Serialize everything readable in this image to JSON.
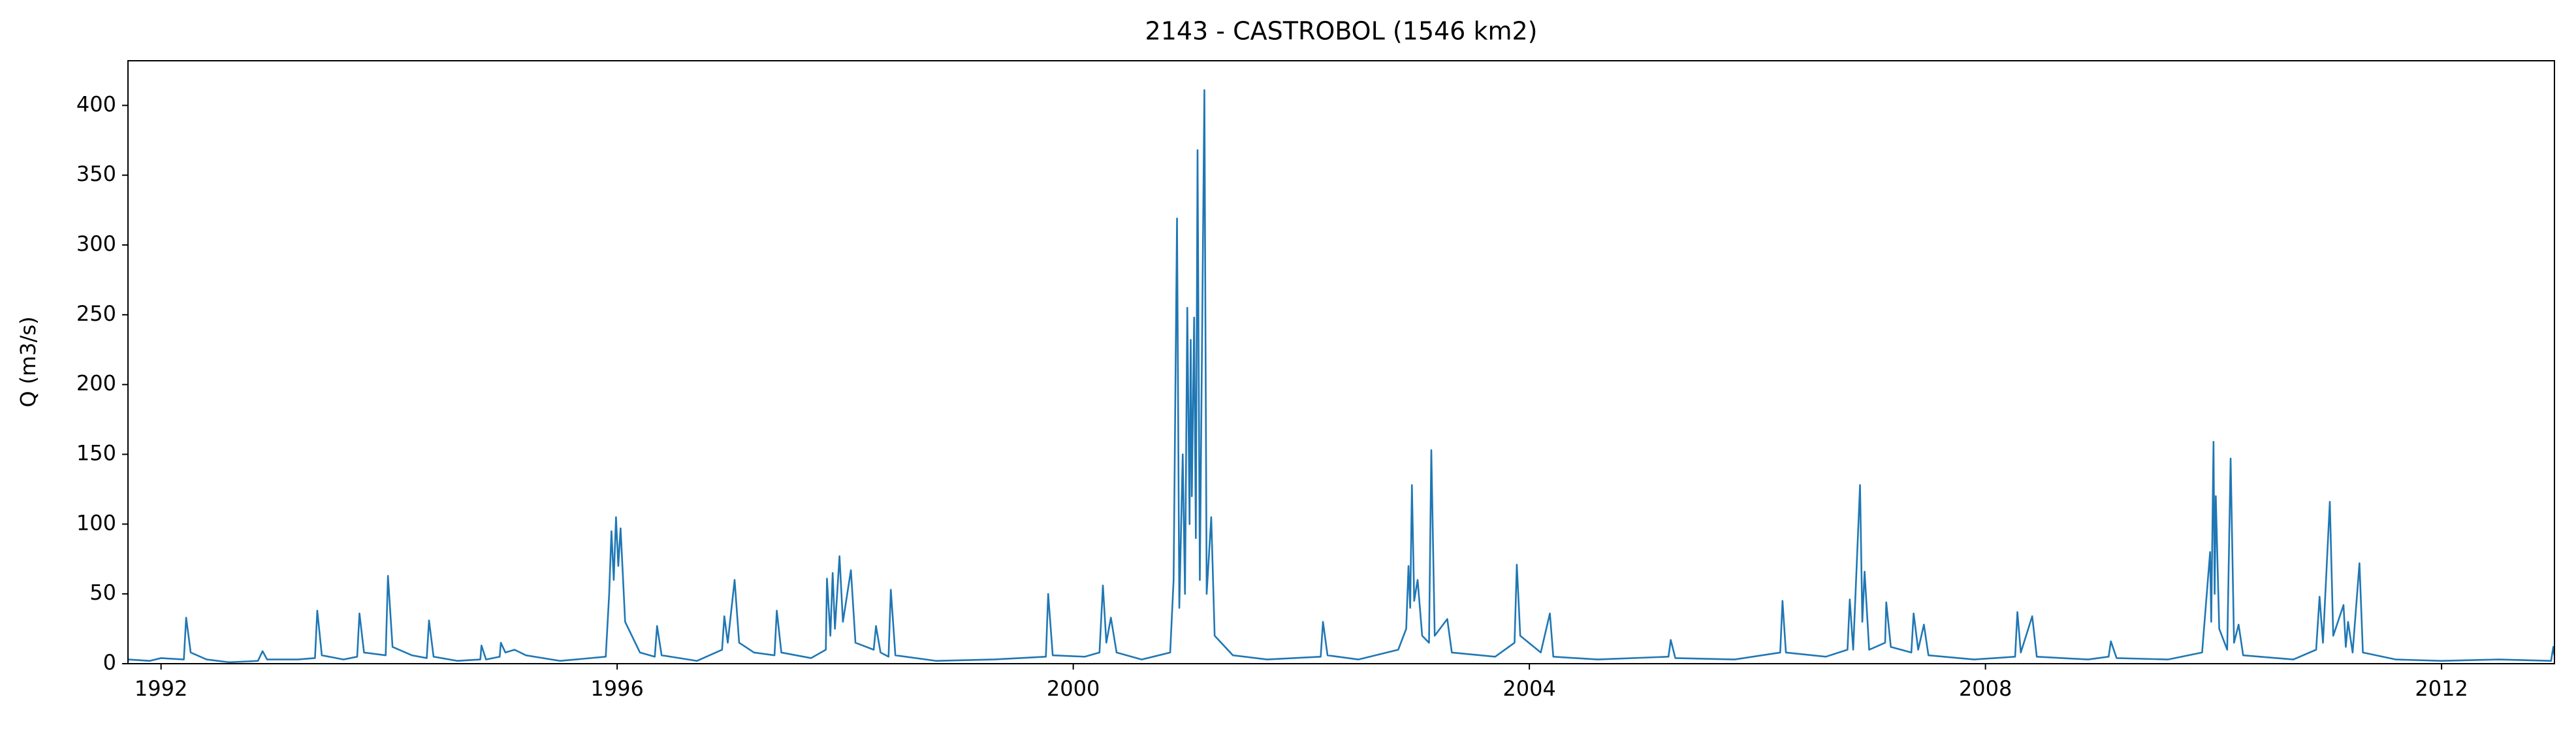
{
  "chart_data": {
    "type": "line",
    "title": "2143 - CASTROBOL (1546 km2)",
    "y_label": "Q (m3/s)",
    "color": "#1f77b4",
    "x": [
      1991.71,
      1991.9,
      1992.0,
      1992.2,
      1992.22,
      1992.26,
      1992.4,
      1992.6,
      1992.85,
      1992.89,
      1992.93,
      1993.2,
      1993.35,
      1993.37,
      1993.41,
      1993.6,
      1993.72,
      1993.74,
      1993.78,
      1993.97,
      1993.99,
      1994.03,
      1994.2,
      1994.33,
      1994.35,
      1994.39,
      1994.6,
      1994.8,
      1994.81,
      1994.85,
      1994.97,
      1994.98,
      1995.02,
      1995.1,
      1995.2,
      1995.5,
      1995.9,
      1995.93,
      1995.95,
      1995.97,
      1995.99,
      1996.01,
      1996.03,
      1996.07,
      1996.2,
      1996.33,
      1996.35,
      1996.39,
      1996.7,
      1996.92,
      1996.94,
      1996.97,
      1997.03,
      1997.07,
      1997.2,
      1997.38,
      1997.4,
      1997.44,
      1997.7,
      1997.83,
      1997.84,
      1997.87,
      1997.89,
      1997.91,
      1997.95,
      1997.98,
      1998.05,
      1998.09,
      1998.25,
      1998.27,
      1998.31,
      1998.38,
      1998.4,
      1998.44,
      1998.8,
      1999.3,
      1999.76,
      1999.78,
      1999.82,
      2000.1,
      2000.23,
      2000.26,
      2000.29,
      2000.33,
      2000.38,
      2000.6,
      2000.85,
      2000.88,
      2000.91,
      2000.93,
      2000.96,
      2000.98,
      2001.0,
      2001.02,
      2001.03,
      2001.04,
      2001.06,
      2001.075,
      2001.09,
      2001.11,
      2001.15,
      2001.17,
      2001.21,
      2001.24,
      2001.4,
      2001.7,
      2002.17,
      2002.19,
      2002.23,
      2002.5,
      2002.85,
      2002.92,
      2002.94,
      2002.955,
      2002.97,
      2002.99,
      2003.02,
      2003.06,
      2003.12,
      2003.14,
      2003.17,
      2003.28,
      2003.32,
      2003.7,
      2003.87,
      2003.89,
      2003.92,
      2004.1,
      2004.18,
      2004.21,
      2004.6,
      2005.22,
      2005.24,
      2005.28,
      2005.8,
      2006.2,
      2006.22,
      2006.25,
      2006.6,
      2006.79,
      2006.81,
      2006.84,
      2006.9,
      2006.92,
      2006.94,
      2006.98,
      2007.12,
      2007.13,
      2007.17,
      2007.35,
      2007.37,
      2007.41,
      2007.46,
      2007.5,
      2007.9,
      2008.26,
      2008.28,
      2008.31,
      2008.41,
      2008.45,
      2008.9,
      2009.08,
      2009.1,
      2009.15,
      2009.6,
      2009.9,
      2009.97,
      2009.98,
      2010.0,
      2010.01,
      2010.02,
      2010.05,
      2010.12,
      2010.15,
      2010.18,
      2010.22,
      2010.26,
      2010.7,
      2010.9,
      2010.93,
      2010.96,
      2011.02,
      2011.05,
      2011.14,
      2011.16,
      2011.18,
      2011.22,
      2011.28,
      2011.31,
      2011.6,
      2012.0,
      2012.5,
      2012.96,
      2012.98,
      2012.99
    ],
    "values": [
      3,
      2,
      4,
      3,
      33,
      8,
      3,
      1,
      2,
      9,
      3,
      3,
      4,
      38,
      6,
      3,
      5,
      36,
      8,
      6,
      63,
      12,
      6,
      4,
      31,
      5,
      2,
      3,
      13,
      3,
      5,
      15,
      8,
      10,
      6,
      2,
      5,
      50,
      95,
      60,
      105,
      70,
      97,
      30,
      8,
      5,
      27,
      6,
      2,
      10,
      34,
      15,
      60,
      15,
      8,
      6,
      38,
      8,
      4,
      10,
      61,
      20,
      65,
      25,
      77,
      30,
      67,
      15,
      10,
      27,
      8,
      5,
      53,
      6,
      2,
      3,
      5,
      50,
      6,
      5,
      8,
      56,
      15,
      33,
      8,
      3,
      8,
      60,
      319,
      40,
      150,
      50,
      255,
      100,
      232,
      120,
      248,
      90,
      368,
      60,
      411,
      50,
      105,
      20,
      6,
      3,
      5,
      30,
      6,
      3,
      10,
      25,
      70,
      40,
      128,
      45,
      60,
      20,
      15,
      153,
      20,
      32,
      8,
      5,
      15,
      71,
      20,
      8,
      36,
      5,
      3,
      5,
      17,
      4,
      3,
      8,
      45,
      8,
      5,
      10,
      46,
      10,
      128,
      30,
      66,
      10,
      15,
      44,
      12,
      8,
      36,
      10,
      28,
      6,
      3,
      5,
      37,
      8,
      34,
      5,
      3,
      5,
      16,
      4,
      3,
      8,
      80,
      30,
      159,
      50,
      120,
      25,
      10,
      147,
      15,
      28,
      6,
      3,
      10,
      48,
      15,
      116,
      20,
      42,
      12,
      30,
      8,
      72,
      8,
      3,
      2,
      3,
      2,
      12,
      6
    ],
    "xlim": [
      1991.71,
      2012.99
    ],
    "xticks": [
      1992,
      1996,
      2000,
      2004,
      2008,
      2012
    ],
    "ylim": [
      0,
      432
    ],
    "yticks": [
      0,
      50,
      100,
      150,
      200,
      250,
      300,
      350,
      400
    ]
  }
}
